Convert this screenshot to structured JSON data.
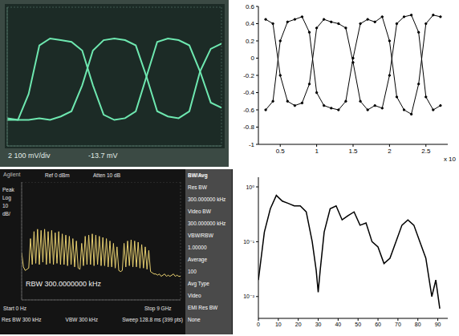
{
  "chart_data": [
    {
      "type": "line",
      "x": [
        0,
        0.5,
        1,
        1.5,
        2,
        2.5,
        3,
        3.5,
        4,
        4.5,
        5,
        5.5,
        6,
        6.5,
        7,
        7.5,
        8,
        8.5,
        9,
        9.5,
        10
      ],
      "series": [
        {
          "color": "#6ee8b0",
          "values": [
            -2.5,
            -2.5,
            -1,
            1.8,
            2.2,
            2.1,
            2,
            1.5,
            -0.5,
            -2.2,
            -2.5,
            -2.4,
            -2,
            0,
            2,
            2.2,
            2.1,
            1.8,
            0.3,
            -1.5,
            -1.8
          ]
        },
        {
          "color": "#6ee8b0",
          "values": [
            -2.4,
            -2.5,
            -2.5,
            -2.4,
            -2.5,
            -2.3,
            -2,
            -0.5,
            1.5,
            2.1,
            2.2,
            2.1,
            1.8,
            0,
            -2,
            -2.3,
            -2.4,
            -2,
            0.3,
            1.6,
            1.9
          ]
        }
      ],
      "xlim": [
        0,
        10
      ],
      "xticks": [
        0,
        1,
        2,
        3,
        4,
        5,
        6,
        7,
        8,
        9,
        10
      ],
      "ylim": [
        -4,
        4
      ],
      "yticks": [
        -4,
        -3,
        -2,
        -1,
        0,
        1,
        2,
        3,
        4
      ],
      "grid": true,
      "tick_labels": false,
      "annotations": [
        "2 100 mV/div",
        "-13.7 mV"
      ]
    },
    {
      "type": "line",
      "x": [
        0.3,
        0.4,
        0.5,
        0.6,
        0.7,
        0.8,
        0.9,
        1.0,
        1.1,
        1.2,
        1.3,
        1.4,
        1.5,
        1.6,
        1.7,
        1.8,
        1.9,
        2.0,
        2.1,
        2.2,
        2.3,
        2.4,
        2.5,
        2.6,
        2.7
      ],
      "series": [
        {
          "color": "#000000",
          "values": [
            -0.6,
            -0.5,
            0.2,
            0.42,
            0.45,
            0.48,
            0.3,
            -0.4,
            -0.55,
            -0.58,
            -0.6,
            -0.5,
            0.0,
            0.4,
            0.45,
            0.42,
            0.48,
            0.2,
            -0.45,
            -0.6,
            -0.65,
            -0.3,
            0.4,
            0.5,
            0.48
          ]
        },
        {
          "color": "#000000",
          "values": [
            0.45,
            0.4,
            -0.2,
            -0.5,
            -0.55,
            -0.52,
            -0.3,
            0.35,
            0.45,
            0.42,
            0.4,
            0.35,
            -0.05,
            -0.5,
            -0.6,
            -0.55,
            -0.58,
            -0.2,
            0.4,
            0.48,
            0.5,
            0.3,
            -0.45,
            -0.6,
            -0.55
          ]
        }
      ],
      "xlim": [
        0.2,
        2.8
      ],
      "xticks": [
        0.5,
        1,
        1.5,
        2,
        2.5
      ],
      "ylim": [
        -1,
        0.6
      ],
      "yticks": [
        -1,
        -0.8,
        -0.6,
        -0.4,
        -0.2,
        0,
        0.2,
        0.4,
        0.6
      ],
      "grid": false,
      "marker": "dot",
      "annotations": [
        "x 10"
      ]
    },
    {
      "type": "line",
      "title": "Agilent",
      "x": [
        0,
        0.1,
        0.2,
        0.3,
        0.4,
        0.5,
        0.6,
        0.7,
        0.8,
        0.9,
        1.0,
        1.1,
        1.2,
        1.3,
        1.4,
        1.5,
        1.6,
        1.7,
        1.8,
        1.9,
        2.0,
        2.1,
        2.2,
        2.3,
        2.4,
        2.5,
        2.6,
        2.7,
        2.8,
        2.9,
        3.0,
        3.1,
        3.2,
        3.3,
        3.4,
        3.5,
        3.6,
        3.7,
        3.8,
        3.9,
        4.0,
        4.1,
        4.2,
        4.3,
        4.4,
        4.5,
        4.6,
        4.7,
        4.8,
        4.9,
        5.0,
        5.1,
        5.2,
        5.3,
        5.4,
        5.5,
        5.6,
        5.7,
        5.8,
        5.9,
        6.0,
        6.1,
        6.2,
        6.3,
        6.4,
        6.5,
        6.6,
        6.7,
        6.8,
        6.9,
        7.0,
        7.1,
        7.2,
        7.3,
        7.4,
        7.5,
        7.6,
        7.7,
        7.8,
        7.9,
        8.0,
        8.1,
        8.2,
        8.3,
        8.4,
        8.5,
        8.6,
        8.7,
        8.8,
        8.9,
        9.0
      ],
      "series": [
        {
          "color": "#e8d070",
          "values": [
            -60,
            -72,
            -75,
            -74,
            -73,
            -48,
            -70,
            -42,
            -69,
            -40,
            -70,
            -41,
            -68,
            -40,
            -70,
            -42,
            -69,
            -41,
            -70,
            -43,
            -69,
            -42,
            -70,
            -44,
            -70,
            -45,
            -71,
            -46,
            -70,
            -48,
            -72,
            -50,
            -73,
            -74,
            -52,
            -71,
            -46,
            -70,
            -45,
            -70,
            -44,
            -71,
            -45,
            -70,
            -46,
            -71,
            -47,
            -71,
            -48,
            -72,
            -50,
            -72,
            -52,
            -73,
            -55,
            -75,
            -76,
            -75,
            -52,
            -72,
            -50,
            -71,
            -49,
            -72,
            -50,
            -72,
            -51,
            -73,
            -53,
            -73,
            -55,
            -74,
            -58,
            -76,
            -77,
            -78,
            -78,
            -79,
            -78,
            -80,
            -79,
            -78,
            -80,
            -79,
            -80,
            -79,
            -78,
            -80,
            -79,
            -80,
            -80
          ]
        }
      ],
      "xlim": [
        0,
        9
      ],
      "xticks": [
        0,
        0.9,
        1.8,
        2.7,
        3.6,
        4.5,
        5.4,
        6.3,
        7.2,
        8.1,
        9
      ],
      "ylim": [
        -100,
        0
      ],
      "yticks": [
        -100,
        -90,
        -80,
        -70,
        -60,
        -50,
        -40,
        -30,
        -20,
        -10,
        0
      ],
      "grid": true,
      "tick_labels": false,
      "annotations": {
        "top": [
          "Ref 0 dBm",
          "Atten 10 dB"
        ],
        "left": [
          "Peak",
          "Log",
          "10",
          "dB/"
        ],
        "plot": "RBW 300.0000000 kHz",
        "bottom": [
          "Start 0 Hz",
          "Stop 9 GHz",
          "Res BW 300 kHz",
          "VBW 300 kHz",
          "Sweep 128.8 ms (399 pts)"
        ]
      },
      "menu": [
        "BW/Avg",
        "Res BW",
        "300.000000 kHz",
        "Video BW",
        "300.000000 kHz",
        "VBW/RBW",
        "1.00000",
        "Average",
        "100",
        "Avg Type",
        "Video",
        "EMI Res BW",
        "None"
      ]
    },
    {
      "type": "line",
      "log": "y",
      "x": [
        0,
        3,
        6,
        9,
        12,
        15,
        18,
        21,
        24,
        27,
        29,
        30,
        31,
        33,
        36,
        39,
        42,
        45,
        48,
        51,
        54,
        57,
        60,
        63,
        66,
        69,
        72,
        75,
        78,
        81,
        84,
        87,
        89,
        91
      ],
      "values": [
        0.02,
        0.15,
        0.4,
        0.7,
        0.55,
        0.5,
        0.45,
        0.45,
        0.35,
        0.1,
        0.03,
        0.012,
        0.03,
        0.15,
        0.4,
        0.45,
        0.25,
        0.3,
        0.35,
        0.2,
        0.22,
        0.1,
        0.08,
        0.04,
        0.05,
        0.1,
        0.2,
        0.25,
        0.2,
        0.1,
        0.05,
        0.01,
        0.02,
        0.006
      ],
      "color": "#000000",
      "xlim": [
        0,
        95
      ],
      "xticks": [
        0,
        10,
        20,
        30,
        40,
        50,
        60,
        70,
        80,
        90
      ],
      "ylim": [
        0.004,
        1.5
      ],
      "yticks": [
        {
          "value": 0.01,
          "label": "10⁻²"
        },
        {
          "value": 0.1,
          "label": "10⁻¹"
        },
        {
          "value": 1,
          "label": "10⁰"
        }
      ],
      "grid": false
    }
  ]
}
